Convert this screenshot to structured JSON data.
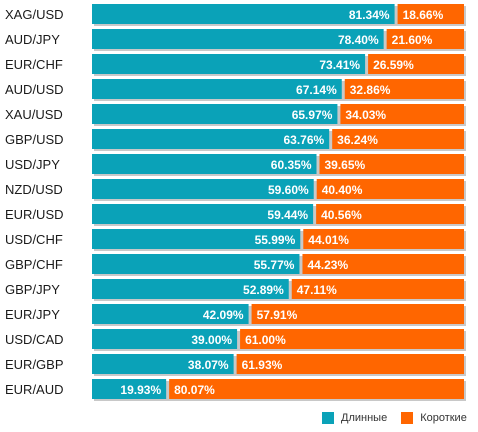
{
  "colors": {
    "long": "#0aa2b8",
    "short": "#ff6600",
    "track_shadow": "#c8c8c8"
  },
  "chart_data": {
    "type": "bar",
    "stacked": true,
    "orientation": "horizontal",
    "categories": [
      "XAG/USD",
      "AUD/JPY",
      "EUR/CHF",
      "AUD/USD",
      "XAU/USD",
      "GBP/USD",
      "USD/JPY",
      "NZD/USD",
      "EUR/USD",
      "USD/CHF",
      "GBP/CHF",
      "GBP/JPY",
      "EUR/JPY",
      "USD/CAD",
      "EUR/GBP",
      "EUR/AUD"
    ],
    "series": [
      {
        "name": "Длинные",
        "values": [
          81.34,
          78.4,
          73.41,
          67.14,
          65.97,
          63.76,
          60.35,
          59.6,
          59.44,
          55.99,
          55.77,
          52.89,
          42.09,
          39.0,
          38.07,
          19.93
        ],
        "labels": [
          "81.34%",
          "78.40%",
          "73.41%",
          "67.14%",
          "65.97%",
          "63.76%",
          "60.35%",
          "59.60%",
          "59.44%",
          "55.99%",
          "55.77%",
          "52.89%",
          "42.09%",
          "39.00%",
          "38.07%",
          "19.93%"
        ]
      },
      {
        "name": "Короткие",
        "values": [
          18.66,
          21.6,
          26.59,
          32.86,
          34.03,
          36.24,
          39.65,
          40.4,
          40.56,
          44.01,
          44.23,
          47.11,
          57.91,
          61.0,
          61.93,
          80.07
        ],
        "labels": [
          "18.66%",
          "21.60%",
          "26.59%",
          "32.86%",
          "34.03%",
          "36.24%",
          "39.65%",
          "40.40%",
          "40.56%",
          "44.01%",
          "44.23%",
          "47.11%",
          "57.91%",
          "61.00%",
          "61.93%",
          "80.07%"
        ]
      }
    ],
    "xlim": [
      0,
      100
    ],
    "legend": "bottom-right",
    "grid": false
  }
}
